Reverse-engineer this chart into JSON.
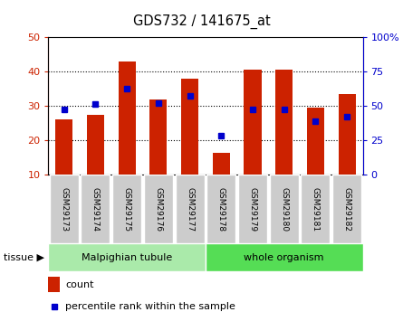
{
  "title": "GDS732 / 141675_at",
  "samples": [
    "GSM29173",
    "GSM29174",
    "GSM29175",
    "GSM29176",
    "GSM29177",
    "GSM29178",
    "GSM29179",
    "GSM29180",
    "GSM29181",
    "GSM29182"
  ],
  "count_values": [
    26.0,
    27.5,
    43.0,
    32.0,
    38.0,
    16.5,
    40.5,
    40.5,
    29.5,
    33.5
  ],
  "percentile_values_left": [
    29.0,
    30.5,
    35.0,
    31.0,
    33.0,
    21.5,
    29.0,
    29.0,
    25.5,
    27.0
  ],
  "bar_color": "#CC2200",
  "dot_color": "#0000CC",
  "bar_bottom": 10,
  "ylim_left": [
    10,
    50
  ],
  "ylim_right": [
    0,
    100
  ],
  "yticks_left": [
    10,
    20,
    30,
    40,
    50
  ],
  "yticks_right": [
    0,
    25,
    50,
    75,
    100
  ],
  "ytick_labels_right": [
    "0",
    "25",
    "50",
    "75",
    "100%"
  ],
  "tissue_groups": [
    {
      "label": "Malpighian tubule",
      "start": 0,
      "end": 5,
      "color": "#AAEAAA"
    },
    {
      "label": "whole organism",
      "start": 5,
      "end": 10,
      "color": "#55DD55"
    }
  ],
  "bar_width": 0.55,
  "grid_yticks": [
    20,
    30,
    40
  ],
  "left_tick_color": "#CC2200",
  "right_tick_color": "#0000CC",
  "sample_box_color": "#CCCCCC"
}
